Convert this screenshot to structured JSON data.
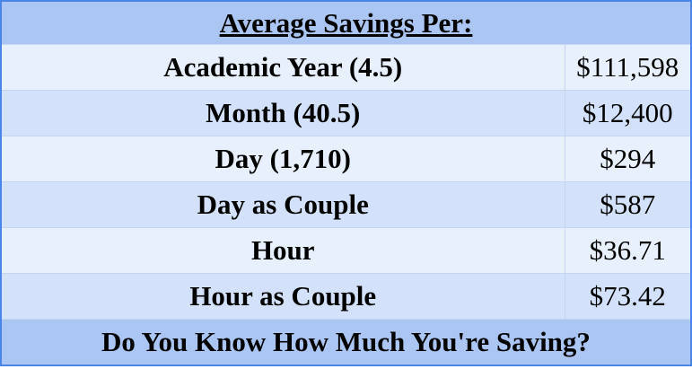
{
  "header": {
    "title": "Average Savings Per:"
  },
  "table": {
    "rows": [
      [
        "Academic Year (4.5)",
        "$111,598"
      ],
      [
        "Month (40.5)",
        "$12,400"
      ],
      [
        "Day (1,710)",
        "$294"
      ],
      [
        "Day as Couple",
        "$587"
      ],
      [
        "Hour",
        "$36.71"
      ],
      [
        "Hour as Couple",
        "$73.42"
      ]
    ]
  },
  "footer": {
    "text": "Do You Know How Much You're Saving?"
  }
}
